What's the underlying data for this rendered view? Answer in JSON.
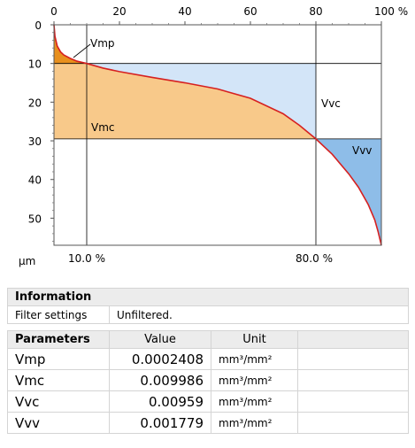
{
  "chart_data": {
    "type": "area",
    "x_axis": {
      "ticks": [
        "0",
        "20",
        "40",
        "60",
        "80",
        "100 %"
      ],
      "range": [
        0,
        100
      ]
    },
    "y_axis": {
      "ticks": [
        "0",
        "10",
        "20",
        "30",
        "40",
        "50"
      ],
      "range": [
        0,
        57
      ],
      "unit_label": "µm",
      "inverted": true
    },
    "curve": {
      "x": [
        0,
        0.3,
        1,
        2,
        3,
        5,
        7,
        10,
        15,
        20,
        30,
        40,
        50,
        60,
        70,
        75,
        80,
        85,
        90,
        93,
        96,
        98,
        99,
        100
      ],
      "y": [
        0,
        3,
        5.5,
        7.0,
        7.8,
        8.7,
        9.4,
        10.0,
        11.2,
        12.1,
        13.6,
        15.0,
        16.6,
        19.0,
        23.0,
        26.0,
        29.5,
        33.5,
        38.5,
        42.0,
        46.5,
        50.5,
        53.5,
        57
      ]
    },
    "mr1_percent": 10.0,
    "mr2_percent": 80.0,
    "level_at_mr1": 10.0,
    "level_at_mr2": 29.5,
    "reference_labels": [
      "10.0 %",
      "80.0 %"
    ],
    "regions": [
      {
        "name": "Vmp",
        "color": "#e8901e"
      },
      {
        "name": "Vmc",
        "color": "#f8c98a"
      },
      {
        "name": "Vvc",
        "color": "#d3e5f8"
      },
      {
        "name": "Vvv",
        "color": "#8ebde8"
      }
    ],
    "curve_color": "#d62020"
  },
  "info": {
    "title": "Information",
    "rows": [
      {
        "label": "Filter settings",
        "value": "Unfiltered."
      }
    ]
  },
  "params": {
    "header": {
      "name": "Parameters",
      "value": "Value",
      "unit": "Unit"
    },
    "rows": [
      {
        "name": "Vmp",
        "value": "0.0002408",
        "unit": "mm³/mm²"
      },
      {
        "name": "Vmc",
        "value": "0.009986",
        "unit": "mm³/mm²"
      },
      {
        "name": "Vvc",
        "value": "0.00959",
        "unit": "mm³/mm²"
      },
      {
        "name": "Vvv",
        "value": "0.001779",
        "unit": "mm³/mm²"
      }
    ]
  }
}
